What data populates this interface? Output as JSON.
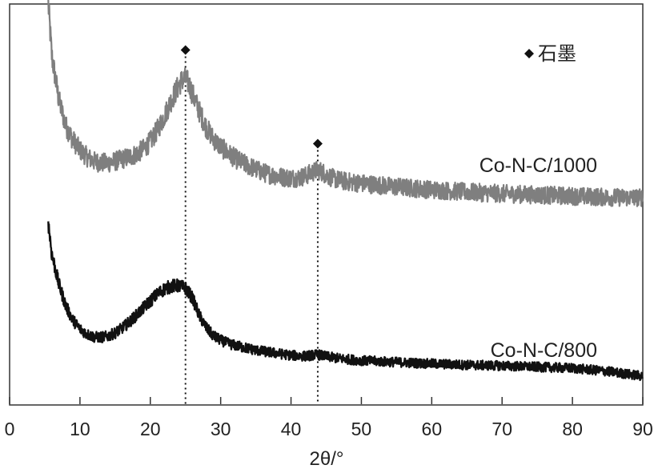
{
  "chart_data": {
    "type": "line",
    "xlabel": "2θ/°",
    "ylabel": "",
    "xlim": [
      0,
      90
    ],
    "ylim": [
      0,
      1
    ],
    "xticks": [
      0,
      10,
      20,
      30,
      40,
      50,
      60,
      70,
      80,
      90
    ],
    "yticks_shown": false,
    "grid": false,
    "legend": {
      "symbol": "diamond",
      "label": "石墨",
      "placement": "top-right"
    },
    "markers": [
      {
        "x": 25.0,
        "y": 0.885,
        "symbol": "diamond",
        "label": "石墨"
      },
      {
        "x": 43.8,
        "y": 0.651,
        "symbol": "diamond",
        "label": "石墨"
      }
    ],
    "reference_lines": [
      {
        "x": 25.0,
        "style": "dotted"
      },
      {
        "x": 43.8,
        "style": "dotted"
      }
    ],
    "colors": {
      "Co-N-C/1000": "#7f7f7f",
      "Co-N-C/800": "#111111",
      "markers": "#111111"
    },
    "series": [
      {
        "name": "Co-N-C/1000",
        "x": [
          5.5,
          6,
          7,
          8,
          9,
          10,
          11,
          12,
          13,
          14,
          15,
          16,
          17,
          18,
          19,
          20,
          21,
          22,
          23,
          24,
          24.5,
          25,
          25.5,
          26,
          27,
          28,
          29,
          30,
          31,
          32,
          33,
          34,
          35,
          36,
          37,
          38,
          39,
          40,
          41,
          42,
          43,
          43.8,
          44.5,
          45,
          46,
          47,
          48,
          50,
          55,
          60,
          65,
          70,
          75,
          80,
          85,
          90
        ],
        "y": [
          1.0,
          0.87,
          0.76,
          0.695,
          0.66,
          0.635,
          0.618,
          0.607,
          0.603,
          0.603,
          0.607,
          0.612,
          0.618,
          0.625,
          0.637,
          0.656,
          0.685,
          0.72,
          0.76,
          0.795,
          0.81,
          0.812,
          0.8,
          0.775,
          0.73,
          0.69,
          0.662,
          0.643,
          0.628,
          0.615,
          0.604,
          0.595,
          0.587,
          0.579,
          0.574,
          0.57,
          0.567,
          0.565,
          0.566,
          0.57,
          0.579,
          0.585,
          0.58,
          0.573,
          0.564,
          0.559,
          0.556,
          0.552,
          0.543,
          0.536,
          0.53,
          0.526,
          0.523,
          0.52,
          0.517,
          0.516
        ]
      },
      {
        "name": "Co-N-C/800",
        "x": [
          5.5,
          6,
          7,
          8,
          9,
          10,
          11,
          12,
          13,
          14,
          15,
          16,
          17,
          18,
          19,
          20,
          21,
          22,
          23,
          24,
          25,
          26,
          27,
          28,
          29,
          30,
          31,
          32,
          33,
          34,
          35,
          36,
          38,
          40,
          42,
          43.8,
          45,
          47,
          50,
          55,
          60,
          65,
          70,
          75,
          80,
          85,
          90
        ],
        "y": [
          0.455,
          0.375,
          0.3,
          0.245,
          0.21,
          0.188,
          0.175,
          0.168,
          0.167,
          0.17,
          0.178,
          0.19,
          0.205,
          0.222,
          0.24,
          0.258,
          0.275,
          0.288,
          0.295,
          0.296,
          0.29,
          0.265,
          0.22,
          0.19,
          0.17,
          0.16,
          0.152,
          0.147,
          0.143,
          0.139,
          0.135,
          0.132,
          0.127,
          0.122,
          0.12,
          0.124,
          0.119,
          0.114,
          0.109,
          0.105,
          0.101,
          0.098,
          0.096,
          0.093,
          0.09,
          0.082,
          0.07
        ]
      }
    ]
  }
}
